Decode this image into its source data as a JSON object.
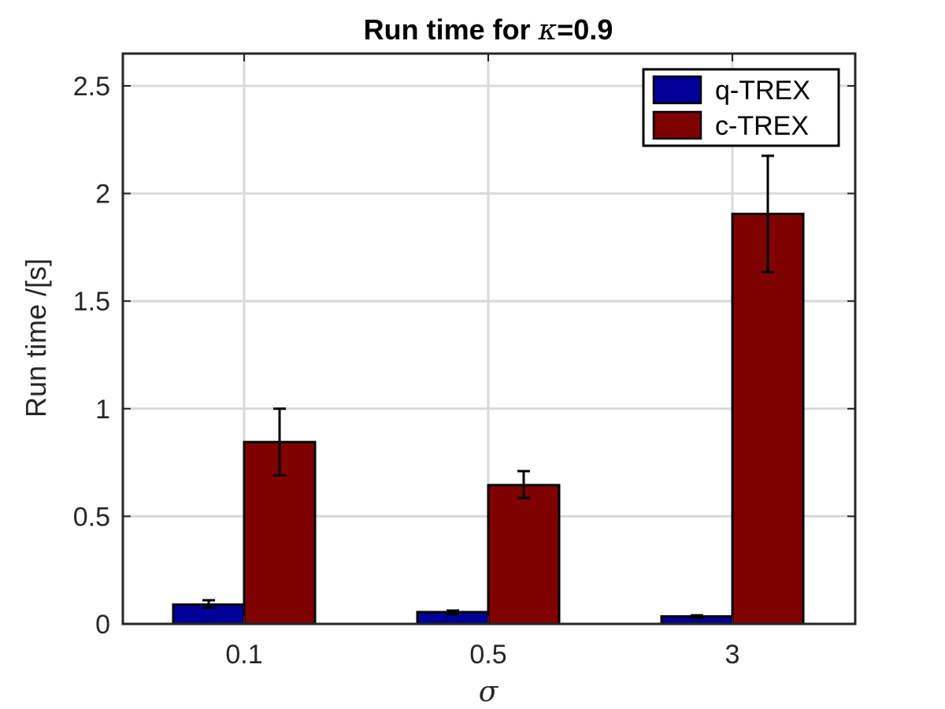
{
  "chart_data": {
    "type": "bar",
    "title_prefix": "Run time for ",
    "title_symbol": "κ",
    "title_suffix": "=0.9",
    "xlabel": "σ",
    "ylabel": "Run time  /[s]",
    "categories": [
      "0.1",
      "0.5",
      "3"
    ],
    "ylim": [
      0,
      2.65
    ],
    "yticks": [
      0,
      0.5,
      1,
      1.5,
      2,
      2.5
    ],
    "ytick_labels": [
      "0",
      "0.5",
      "1",
      "1.5",
      "2",
      "2.5"
    ],
    "grid": true,
    "legend_position": "top-right",
    "series": [
      {
        "name": "q-TREX",
        "color": "#000099",
        "values": [
          0.09,
          0.055,
          0.035
        ],
        "error_low": [
          0.075,
          0.045,
          0.028
        ],
        "error_high": [
          0.11,
          0.062,
          0.04
        ]
      },
      {
        "name": "c-TREX",
        "color": "#800000",
        "values": [
          0.845,
          0.645,
          1.905
        ],
        "error_low": [
          0.69,
          0.585,
          1.635
        ],
        "error_high": [
          1.0,
          0.71,
          2.175
        ]
      }
    ]
  }
}
